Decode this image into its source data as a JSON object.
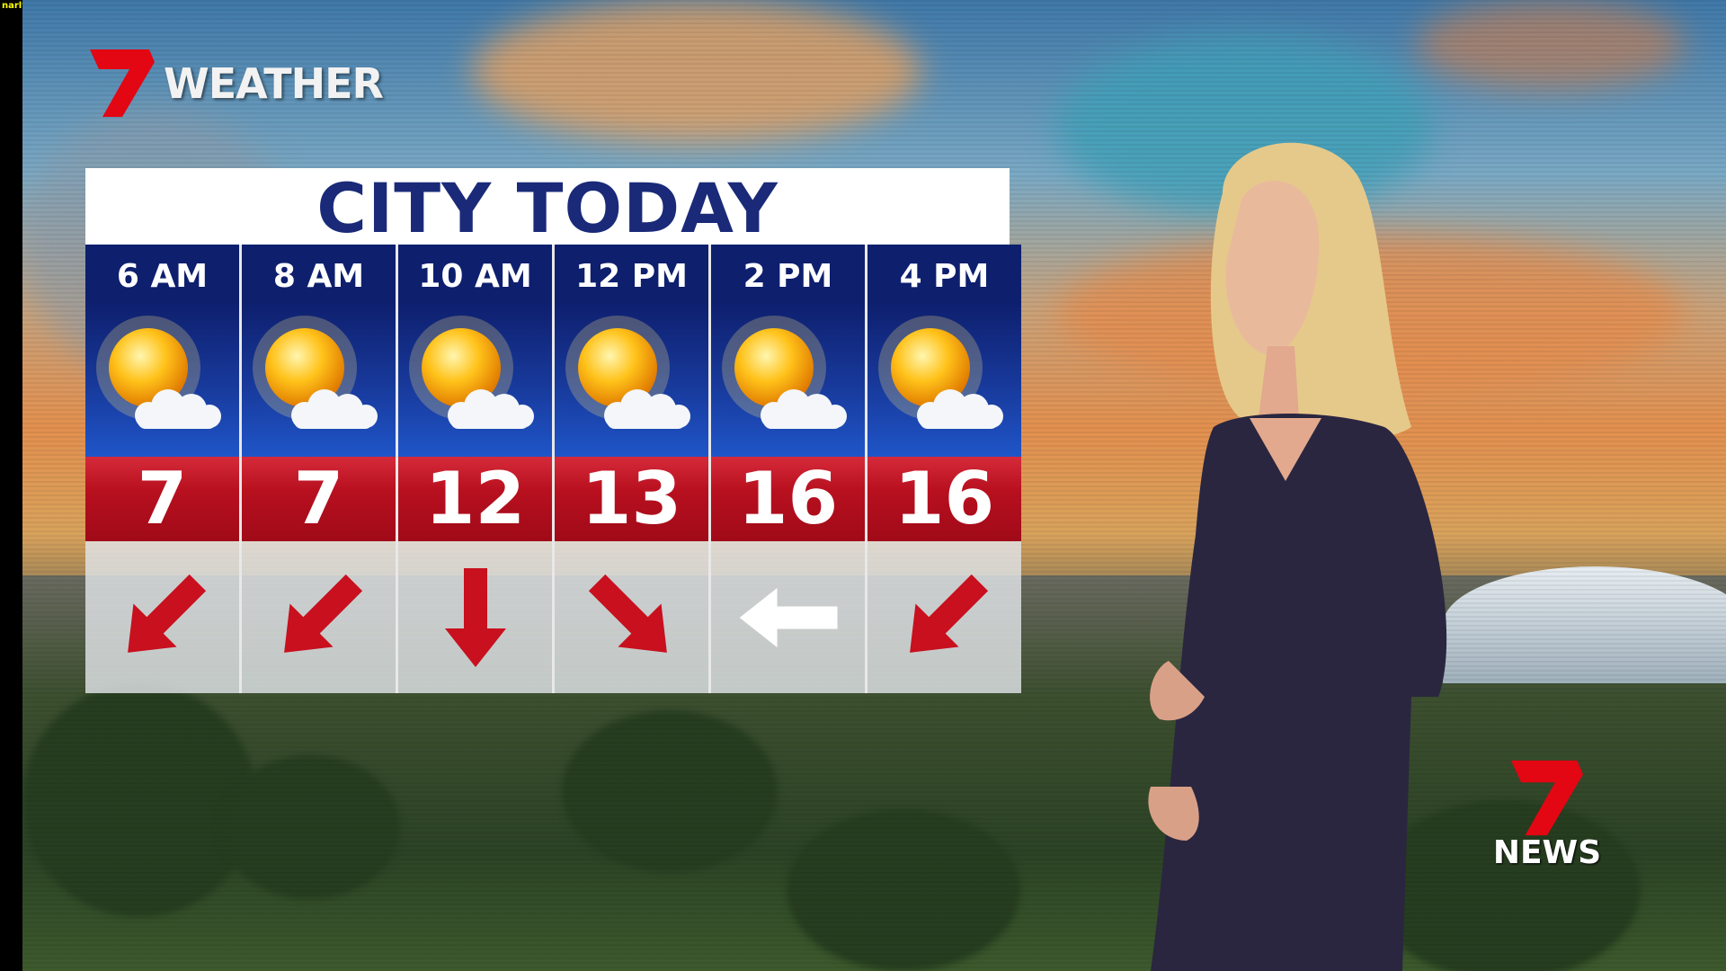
{
  "overlay_label": "narly",
  "brand": {
    "weather_logo": "WEATHER",
    "news_logo": "NEWS",
    "logo_digit": "7",
    "accent": "#e30613"
  },
  "panel": {
    "title": "CITY TODAY",
    "forecast": [
      {
        "time": "6 AM",
        "condition": "partly-cloudy-icon",
        "temp": "7",
        "wind": "southwest",
        "wind_color": "#c8101e"
      },
      {
        "time": "8 AM",
        "condition": "partly-cloudy-icon",
        "temp": "7",
        "wind": "southwest",
        "wind_color": "#c8101e"
      },
      {
        "time": "10 AM",
        "condition": "partly-cloudy-icon",
        "temp": "12",
        "wind": "south",
        "wind_color": "#c8101e"
      },
      {
        "time": "12 PM",
        "condition": "partly-cloudy-icon",
        "temp": "13",
        "wind": "southeast",
        "wind_color": "#c8101e"
      },
      {
        "time": "2 PM",
        "condition": "partly-cloudy-icon",
        "temp": "16",
        "wind": "west",
        "wind_color": "#ffffff"
      },
      {
        "time": "4 PM",
        "condition": "partly-cloudy-icon",
        "temp": "16",
        "wind": "southwest",
        "wind_color": "#c8101e"
      }
    ]
  }
}
